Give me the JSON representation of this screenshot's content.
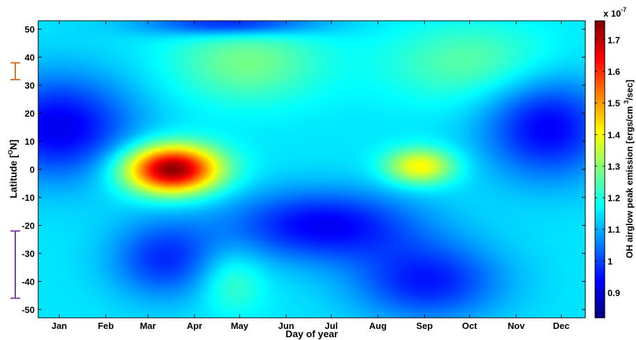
{
  "chart_data": {
    "type": "heatmap",
    "xlabel": "Day of year",
    "ylabel": "Latitude [°N]",
    "ylabel_parts": {
      "main": "Latitude [",
      "sup": "O",
      "end": "N]"
    },
    "months": [
      "Jan",
      "Feb",
      "Mar",
      "Apr",
      "May",
      "Jun",
      "Jul",
      "Aug",
      "Sep",
      "Oct",
      "Nov",
      "Dec"
    ],
    "xlim": [
      1,
      365
    ],
    "ylim": [
      -53,
      53
    ],
    "yticks": [
      50,
      40,
      30,
      20,
      10,
      0,
      -10,
      -20,
      -30,
      -40,
      -50
    ],
    "colorbar": {
      "label": "OH airglow peak emission [ergs/cm 3/sec]",
      "label_main": "OH airglow peak emission [ergs/cm ",
      "label_sup": "3",
      "label_end": "/sec]",
      "multiplier": "x 10",
      "multiplier_exp": "-7",
      "range": [
        0.82,
        1.76
      ],
      "ticks": [
        0.9,
        1,
        1.1,
        1.2,
        1.3,
        1.4,
        1.5,
        1.6,
        1.7
      ],
      "colormap": "jet"
    },
    "background": 1.15,
    "features": [
      {
        "day": 15,
        "lat": 15,
        "value": 0.92,
        "sx": 35,
        "sy": 13
      },
      {
        "day": 340,
        "lat": 15,
        "value": 0.93,
        "sx": 30,
        "sy": 13
      },
      {
        "day": 90,
        "lat": 0,
        "value": 1.76,
        "sx": 22,
        "sy": 6
      },
      {
        "day": 255,
        "lat": 1,
        "value": 1.42,
        "sx": 16,
        "sy": 4.5
      },
      {
        "day": 190,
        "lat": -20,
        "value": 0.93,
        "sx": 45,
        "sy": 9
      },
      {
        "day": 260,
        "lat": -40,
        "value": 0.96,
        "sx": 35,
        "sy": 10
      },
      {
        "day": 85,
        "lat": -32,
        "value": 0.98,
        "sx": 25,
        "sy": 10
      },
      {
        "day": 130,
        "lat": 52,
        "value": 0.94,
        "sx": 40,
        "sy": 3
      },
      {
        "day": 140,
        "lat": 38,
        "value": 1.28,
        "sx": 35,
        "sy": 10
      },
      {
        "day": 290,
        "lat": 38,
        "value": 1.26,
        "sx": 40,
        "sy": 10
      },
      {
        "day": 130,
        "lat": -40,
        "value": 1.24,
        "sx": 15,
        "sy": 8
      }
    ],
    "range_markers": [
      {
        "color": "#d9732a",
        "lat_top": 38,
        "lat_bottom": 32
      },
      {
        "color": "#7d3fa8",
        "lat_top": -22,
        "lat_bottom": -46
      }
    ]
  }
}
